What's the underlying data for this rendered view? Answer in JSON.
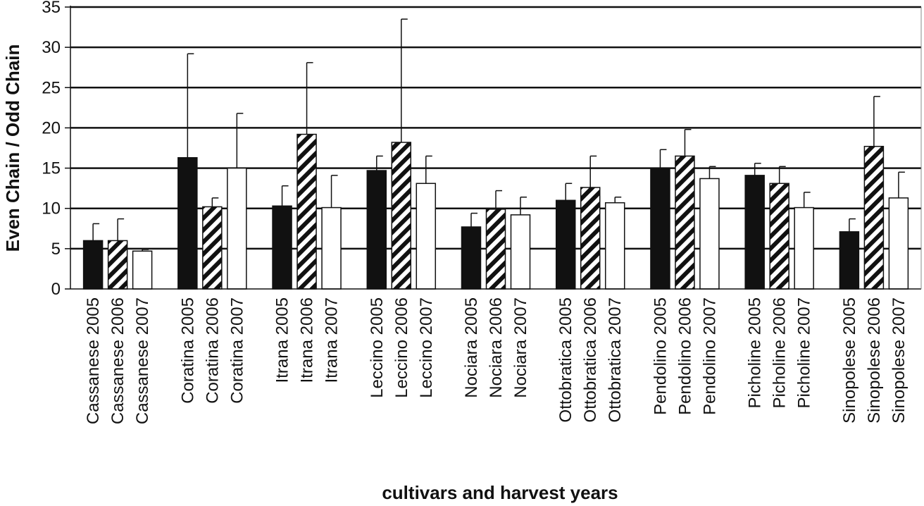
{
  "chart_data": {
    "type": "bar",
    "title": "",
    "xlabel": "cultivars and harvest years",
    "ylabel": "Even Chain / Odd Chain",
    "ylim": [
      0,
      35
    ],
    "yticks": [
      0,
      5,
      10,
      15,
      20,
      25,
      30,
      35
    ],
    "grid": true,
    "legend": "none",
    "groups": [
      {
        "cultivar": "Cassanese",
        "bars": [
          {
            "label": "Cassanese 2005",
            "year": "2005",
            "value": 6.0,
            "error": 2.1
          },
          {
            "label": "Cassanese 2006",
            "year": "2006",
            "value": 6.0,
            "error": 2.7
          },
          {
            "label": "Cassanese 2007",
            "year": "2007",
            "value": 4.7,
            "error": 0.2
          }
        ]
      },
      {
        "cultivar": "Coratina",
        "bars": [
          {
            "label": "Coratina 2005",
            "year": "2005",
            "value": 16.3,
            "error": 12.9
          },
          {
            "label": "Coratina 2006",
            "year": "2006",
            "value": 10.2,
            "error": 1.1
          },
          {
            "label": "Coratina 2007",
            "year": "2007",
            "value": 15.0,
            "error": 6.8
          }
        ]
      },
      {
        "cultivar": "Itrana",
        "bars": [
          {
            "label": "Itrana 2005",
            "year": "2005",
            "value": 10.3,
            "error": 2.5
          },
          {
            "label": "Itrana 2006",
            "year": "2006",
            "value": 19.2,
            "error": 8.9
          },
          {
            "label": "Itrana 2007",
            "year": "2007",
            "value": 10.1,
            "error": 4.0
          }
        ]
      },
      {
        "cultivar": "Leccino",
        "bars": [
          {
            "label": "Leccino 2005",
            "year": "2005",
            "value": 14.7,
            "error": 1.8
          },
          {
            "label": "Leccino 2006",
            "year": "2006",
            "value": 18.2,
            "error": 15.3
          },
          {
            "label": "Leccino 2007",
            "year": "2007",
            "value": 13.1,
            "error": 3.4
          }
        ]
      },
      {
        "cultivar": "Nociara",
        "bars": [
          {
            "label": "Nociara 2005",
            "year": "2005",
            "value": 7.7,
            "error": 1.7
          },
          {
            "label": "Nociara 2006",
            "year": "2006",
            "value": 9.9,
            "error": 2.3
          },
          {
            "label": "Nociara 2007",
            "year": "2007",
            "value": 9.2,
            "error": 2.2
          }
        ]
      },
      {
        "cultivar": "Ottobratica",
        "bars": [
          {
            "label": "Ottobratica 2005",
            "year": "2005",
            "value": 11.0,
            "error": 2.1
          },
          {
            "label": "Ottobratica 2006",
            "year": "2006",
            "value": 12.6,
            "error": 3.9
          },
          {
            "label": "Ottobratica 2007",
            "year": "2007",
            "value": 10.7,
            "error": 0.7
          }
        ]
      },
      {
        "cultivar": "Pendolino",
        "bars": [
          {
            "label": "Pendolino 2005",
            "year": "2005",
            "value": 15.0,
            "error": 2.3
          },
          {
            "label": "Pendolino 2006",
            "year": "2006",
            "value": 16.5,
            "error": 3.3
          },
          {
            "label": "Pendolino 2007",
            "year": "2007",
            "value": 13.7,
            "error": 1.5
          }
        ]
      },
      {
        "cultivar": "Picholine",
        "bars": [
          {
            "label": "Picholine 2005",
            "year": "2005",
            "value": 14.1,
            "error": 1.5
          },
          {
            "label": "Picholine 2006",
            "year": "2006",
            "value": 13.1,
            "error": 2.1
          },
          {
            "label": "Picholine 2007",
            "year": "2007",
            "value": 10.1,
            "error": 1.9
          }
        ]
      },
      {
        "cultivar": "Sinopolese",
        "bars": [
          {
            "label": "Sinopolese 2005",
            "year": "2005",
            "value": 7.1,
            "error": 1.6
          },
          {
            "label": "Sinopolese 2006",
            "year": "2006",
            "value": 17.7,
            "error": 6.2
          },
          {
            "label": "Sinopolese 2007",
            "year": "2007",
            "value": 11.3,
            "error": 3.2
          }
        ]
      }
    ],
    "year_styles": {
      "2005": "solid black",
      "2006": "black and white diagonal stripes",
      "2007": "white with black outline"
    },
    "colors": {
      "bar_dark": "#111111",
      "bar_light": "#ffffff",
      "gridline": "#111111"
    }
  }
}
